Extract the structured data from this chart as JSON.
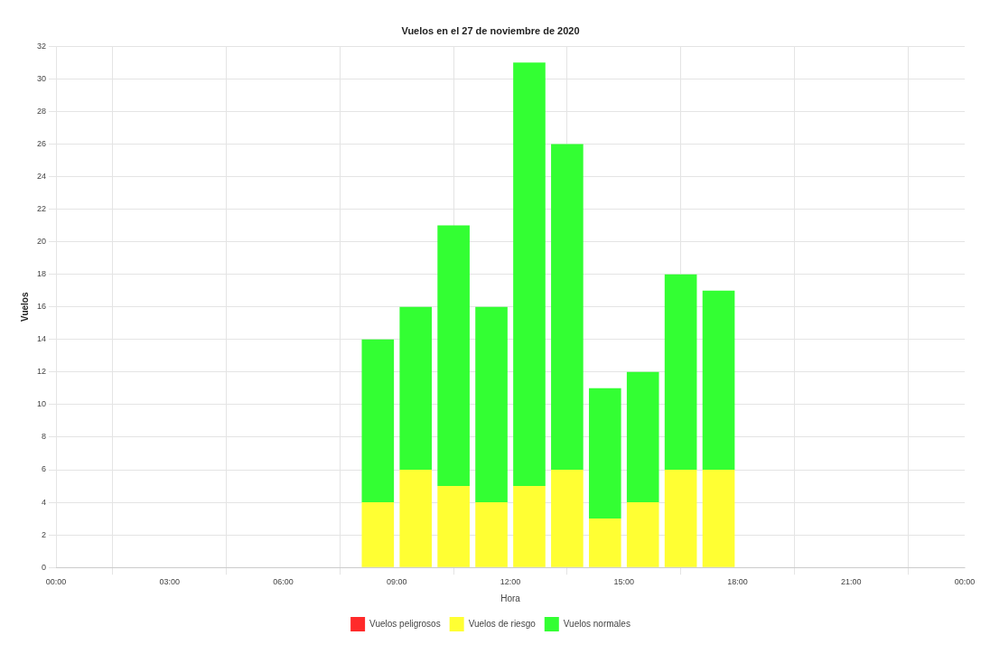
{
  "chart_data": {
    "type": "bar",
    "title": "Vuelos en el 27 de noviembre de 2020",
    "xlabel": "Hora",
    "ylabel": "Vuelos",
    "stacked": true,
    "x": [
      8.5,
      9.5,
      10.5,
      11.5,
      12.5,
      13.5,
      14.5,
      15.5,
      16.5,
      17.5
    ],
    "series": [
      {
        "name": "Vuelos peligrosos",
        "color": "#ff2a2a",
        "values": [
          0,
          0,
          0,
          0,
          0,
          0,
          0,
          0,
          0,
          0
        ]
      },
      {
        "name": "Vuelos de riesgo",
        "color": "#ffff33",
        "values": [
          4,
          6,
          5,
          4,
          5,
          6,
          3,
          4,
          6,
          6
        ]
      },
      {
        "name": "Vuelos normales",
        "color": "#33ff33",
        "values": [
          10,
          10,
          16,
          12,
          26,
          20,
          8,
          8,
          12,
          11
        ]
      }
    ],
    "xlim": [
      0,
      24
    ],
    "xticks": [
      {
        "value": 0,
        "label": "00:00"
      },
      {
        "value": 3,
        "label": "03:00"
      },
      {
        "value": 6,
        "label": "06:00"
      },
      {
        "value": 9,
        "label": "09:00"
      },
      {
        "value": 12,
        "label": "12:00"
      },
      {
        "value": 15,
        "label": "15:00"
      },
      {
        "value": 18,
        "label": "18:00"
      },
      {
        "value": 21,
        "label": "21:00"
      },
      {
        "value": 24,
        "label": "00:00"
      }
    ],
    "ylim": [
      0,
      32
    ],
    "yticks": [
      0,
      2,
      4,
      6,
      8,
      10,
      12,
      14,
      16,
      18,
      20,
      22,
      24,
      26,
      28,
      30,
      32
    ],
    "grid": true,
    "legend": "bottom"
  }
}
